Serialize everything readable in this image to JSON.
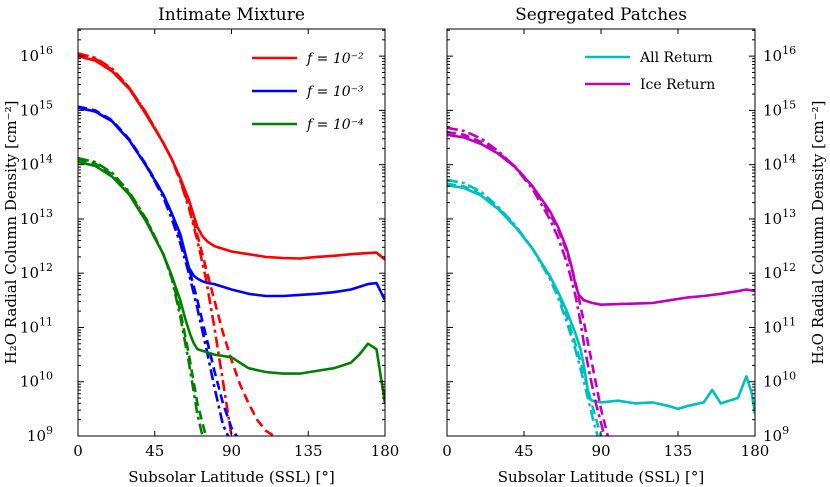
{
  "chart_data": [
    {
      "type": "line",
      "title": "Intimate Mixture",
      "xlabel": "Subsolar Latitude (SSL) [°]",
      "ylabel": "H₂O Radial Column Density [cm⁻²]",
      "xlim": [
        0,
        180
      ],
      "ylim_log10": [
        9,
        16.5
      ],
      "xticks": [
        0,
        45,
        90,
        135,
        180
      ],
      "xtick_labels": [
        "0",
        "45",
        "90",
        "135",
        "180"
      ],
      "ytick_exponents": [
        9,
        10,
        11,
        12,
        13,
        14,
        15,
        16
      ],
      "yscale": "log",
      "legend_position": "top-right",
      "legend": [
        "f = 10⁻²",
        "f = 10⁻³",
        "f = 10⁻⁴"
      ],
      "series": [
        {
          "name": "f = 10⁻²",
          "color": "#ff0000",
          "style": "solid",
          "x": [
            0,
            10,
            20,
            30,
            40,
            50,
            55,
            60,
            65,
            68,
            70,
            73,
            76,
            80,
            90,
            100,
            110,
            120,
            130,
            140,
            150,
            160,
            170,
            175,
            180
          ],
          "log10_y": [
            16.0,
            15.92,
            15.72,
            15.4,
            14.92,
            14.4,
            14.1,
            13.75,
            13.35,
            13.05,
            12.85,
            12.68,
            12.58,
            12.5,
            12.4,
            12.35,
            12.3,
            12.28,
            12.27,
            12.3,
            12.32,
            12.35,
            12.37,
            12.38,
            12.25
          ]
        },
        {
          "name": "f = 10⁻² (dash-dot)",
          "color": "#ff0000",
          "style": "dashdot",
          "x": [
            0,
            10,
            20,
            30,
            40,
            50,
            55,
            60,
            65,
            70,
            75,
            80,
            85,
            90
          ],
          "log10_y": [
            16.05,
            15.97,
            15.77,
            15.42,
            14.95,
            14.4,
            14.1,
            13.7,
            13.2,
            12.6,
            11.9,
            11.0,
            10.0,
            9.0
          ]
        },
        {
          "name": "f = 10⁻² (dashed)",
          "color": "#ff0000",
          "style": "dashed",
          "x": [
            0,
            10,
            20,
            30,
            40,
            50,
            55,
            60,
            65,
            70,
            75,
            80,
            85,
            90,
            95,
            100,
            105,
            110,
            115
          ],
          "log10_y": [
            16.02,
            15.95,
            15.75,
            15.42,
            14.95,
            14.4,
            14.1,
            13.72,
            13.25,
            12.7,
            12.1,
            11.5,
            10.9,
            10.4,
            9.95,
            9.6,
            9.3,
            9.1,
            9.0
          ]
        },
        {
          "name": "f = 10⁻³",
          "color": "#0000ff",
          "style": "solid",
          "x": [
            0,
            10,
            20,
            30,
            40,
            50,
            55,
            60,
            63,
            65,
            68,
            70,
            73,
            76,
            80,
            90,
            100,
            110,
            120,
            130,
            140,
            150,
            160,
            170,
            175,
            180
          ],
          "log10_y": [
            15.05,
            14.98,
            14.8,
            14.45,
            13.98,
            13.45,
            13.1,
            12.72,
            12.35,
            12.1,
            11.95,
            11.9,
            11.85,
            11.82,
            11.8,
            11.7,
            11.62,
            11.58,
            11.58,
            11.6,
            11.62,
            11.65,
            11.7,
            11.8,
            11.82,
            11.5
          ]
        },
        {
          "name": "f = 10⁻³ (dash-dot)",
          "color": "#0000ff",
          "style": "dashdot",
          "x": [
            0,
            10,
            20,
            30,
            40,
            50,
            55,
            60,
            65,
            70,
            75,
            80,
            85,
            88
          ],
          "log10_y": [
            15.05,
            14.98,
            14.8,
            14.45,
            13.98,
            13.4,
            13.0,
            12.55,
            12.0,
            11.35,
            10.65,
            9.9,
            9.2,
            9.0
          ]
        },
        {
          "name": "f = 10⁻³ (dashed)",
          "color": "#0000ff",
          "style": "dashed",
          "x": [
            0,
            10,
            20,
            30,
            40,
            50,
            55,
            60,
            65,
            70,
            75,
            80,
            85,
            90,
            93
          ],
          "log10_y": [
            15.07,
            15.0,
            14.82,
            14.47,
            14.0,
            13.45,
            13.1,
            12.65,
            12.1,
            11.5,
            10.85,
            10.2,
            9.6,
            9.15,
            9.0
          ]
        },
        {
          "name": "f = 10⁻⁴",
          "color": "#008000",
          "style": "solid",
          "x": [
            0,
            10,
            20,
            30,
            40,
            50,
            55,
            60,
            63,
            66,
            68,
            70,
            75,
            80,
            90,
            100,
            110,
            120,
            130,
            140,
            150,
            160,
            165,
            170,
            175,
            180
          ],
          "log10_y": [
            14.05,
            13.98,
            13.78,
            13.45,
            12.95,
            12.35,
            11.95,
            11.5,
            11.15,
            10.85,
            10.7,
            10.6,
            10.55,
            10.5,
            10.45,
            10.25,
            10.18,
            10.15,
            10.15,
            10.2,
            10.25,
            10.35,
            10.5,
            10.7,
            10.6,
            9.6
          ]
        },
        {
          "name": "f = 10⁻⁴ (dash-dot)",
          "color": "#008000",
          "style": "dashdot",
          "x": [
            0,
            10,
            20,
            30,
            40,
            50,
            55,
            60,
            65,
            70,
            73
          ],
          "log10_y": [
            14.12,
            14.05,
            13.85,
            13.5,
            13.0,
            12.35,
            11.9,
            11.2,
            10.35,
            9.4,
            9.0
          ]
        },
        {
          "name": "f = 10⁻⁴ (dashed)",
          "color": "#008000",
          "style": "dashed",
          "x": [
            0,
            10,
            20,
            30,
            40,
            50,
            55,
            60,
            65,
            70,
            75
          ],
          "log10_y": [
            14.1,
            14.02,
            13.82,
            13.47,
            12.98,
            12.35,
            11.92,
            11.3,
            10.5,
            9.6,
            9.0
          ]
        }
      ]
    },
    {
      "type": "line",
      "title": "Segregated Patches",
      "xlabel": "Subsolar Latitude (SSL) [°]",
      "ylabel": "H₂O Radial Column Density [cm⁻²]",
      "xlim": [
        0,
        180
      ],
      "ylim_log10": [
        9,
        16.5
      ],
      "xticks": [
        0,
        45,
        90,
        135,
        180
      ],
      "xtick_labels": [
        "0",
        "45",
        "90",
        "135",
        "180"
      ],
      "ytick_exponents": [
        9,
        10,
        11,
        12,
        13,
        14,
        15,
        16
      ],
      "yscale": "log",
      "legend_position": "top-right",
      "legend": [
        "All Return",
        "Ice Return"
      ],
      "series": [
        {
          "name": "All Return",
          "color": "#00bfbf",
          "style": "solid",
          "x": [
            0,
            10,
            20,
            30,
            40,
            50,
            60,
            65,
            70,
            75,
            78,
            80,
            82,
            83,
            85,
            90,
            100,
            110,
            120,
            130,
            135,
            140,
            150,
            155,
            160,
            170,
            175,
            178,
            180
          ],
          "log10_y": [
            13.62,
            13.57,
            13.43,
            13.18,
            12.85,
            12.45,
            11.95,
            11.65,
            11.3,
            10.9,
            10.6,
            10.3,
            9.9,
            9.7,
            9.65,
            9.62,
            9.65,
            9.6,
            9.62,
            9.55,
            9.5,
            9.55,
            9.62,
            9.85,
            9.6,
            9.7,
            10.1,
            9.8,
            9.4
          ]
        },
        {
          "name": "All Return (dash-dot)",
          "color": "#00bfbf",
          "style": "dashdot",
          "x": [
            0,
            10,
            20,
            30,
            40,
            50,
            60,
            65,
            70,
            75,
            80,
            85,
            88
          ],
          "log10_y": [
            13.72,
            13.66,
            13.5,
            13.22,
            12.88,
            12.45,
            11.9,
            11.55,
            11.1,
            10.6,
            10.0,
            9.35,
            9.0
          ]
        },
        {
          "name": "All Return (dashed)",
          "color": "#00bfbf",
          "style": "dashed",
          "x": [
            0,
            10,
            20,
            30,
            40,
            50,
            60,
            65,
            70,
            75,
            80,
            85,
            90
          ],
          "log10_y": [
            13.65,
            13.6,
            13.45,
            13.2,
            12.86,
            12.45,
            11.95,
            11.62,
            11.2,
            10.7,
            10.15,
            9.55,
            9.0
          ]
        },
        {
          "name": "Ice Return",
          "color": "#bf00bf",
          "style": "solid",
          "x": [
            0,
            10,
            20,
            30,
            40,
            50,
            60,
            65,
            70,
            73,
            75,
            77,
            80,
            85,
            90,
            100,
            110,
            120,
            130,
            140,
            150,
            160,
            170,
            175,
            180
          ],
          "log10_y": [
            14.55,
            14.5,
            14.38,
            14.2,
            13.95,
            13.6,
            13.15,
            12.85,
            12.45,
            12.1,
            11.8,
            11.6,
            11.5,
            11.45,
            11.42,
            11.43,
            11.44,
            11.45,
            11.5,
            11.55,
            11.58,
            11.62,
            11.67,
            11.7,
            11.67
          ]
        },
        {
          "name": "Ice Return (dash-dot)",
          "color": "#bf00bf",
          "style": "dashdot",
          "x": [
            0,
            10,
            20,
            30,
            40,
            50,
            60,
            65,
            70,
            75,
            78,
            80,
            83,
            87,
            92
          ],
          "log10_y": [
            14.68,
            14.62,
            14.48,
            14.25,
            13.95,
            13.55,
            13.0,
            12.65,
            12.2,
            11.6,
            11.1,
            10.7,
            10.2,
            9.6,
            9.0
          ]
        },
        {
          "name": "Ice Return (dashed)",
          "color": "#bf00bf",
          "style": "dashed",
          "x": [
            0,
            10,
            20,
            30,
            40,
            50,
            60,
            65,
            70,
            75,
            80,
            85,
            90,
            94
          ],
          "log10_y": [
            14.6,
            14.55,
            14.42,
            14.22,
            13.96,
            13.6,
            13.1,
            12.8,
            12.4,
            11.85,
            11.1,
            10.3,
            9.5,
            9.0
          ]
        }
      ]
    }
  ]
}
